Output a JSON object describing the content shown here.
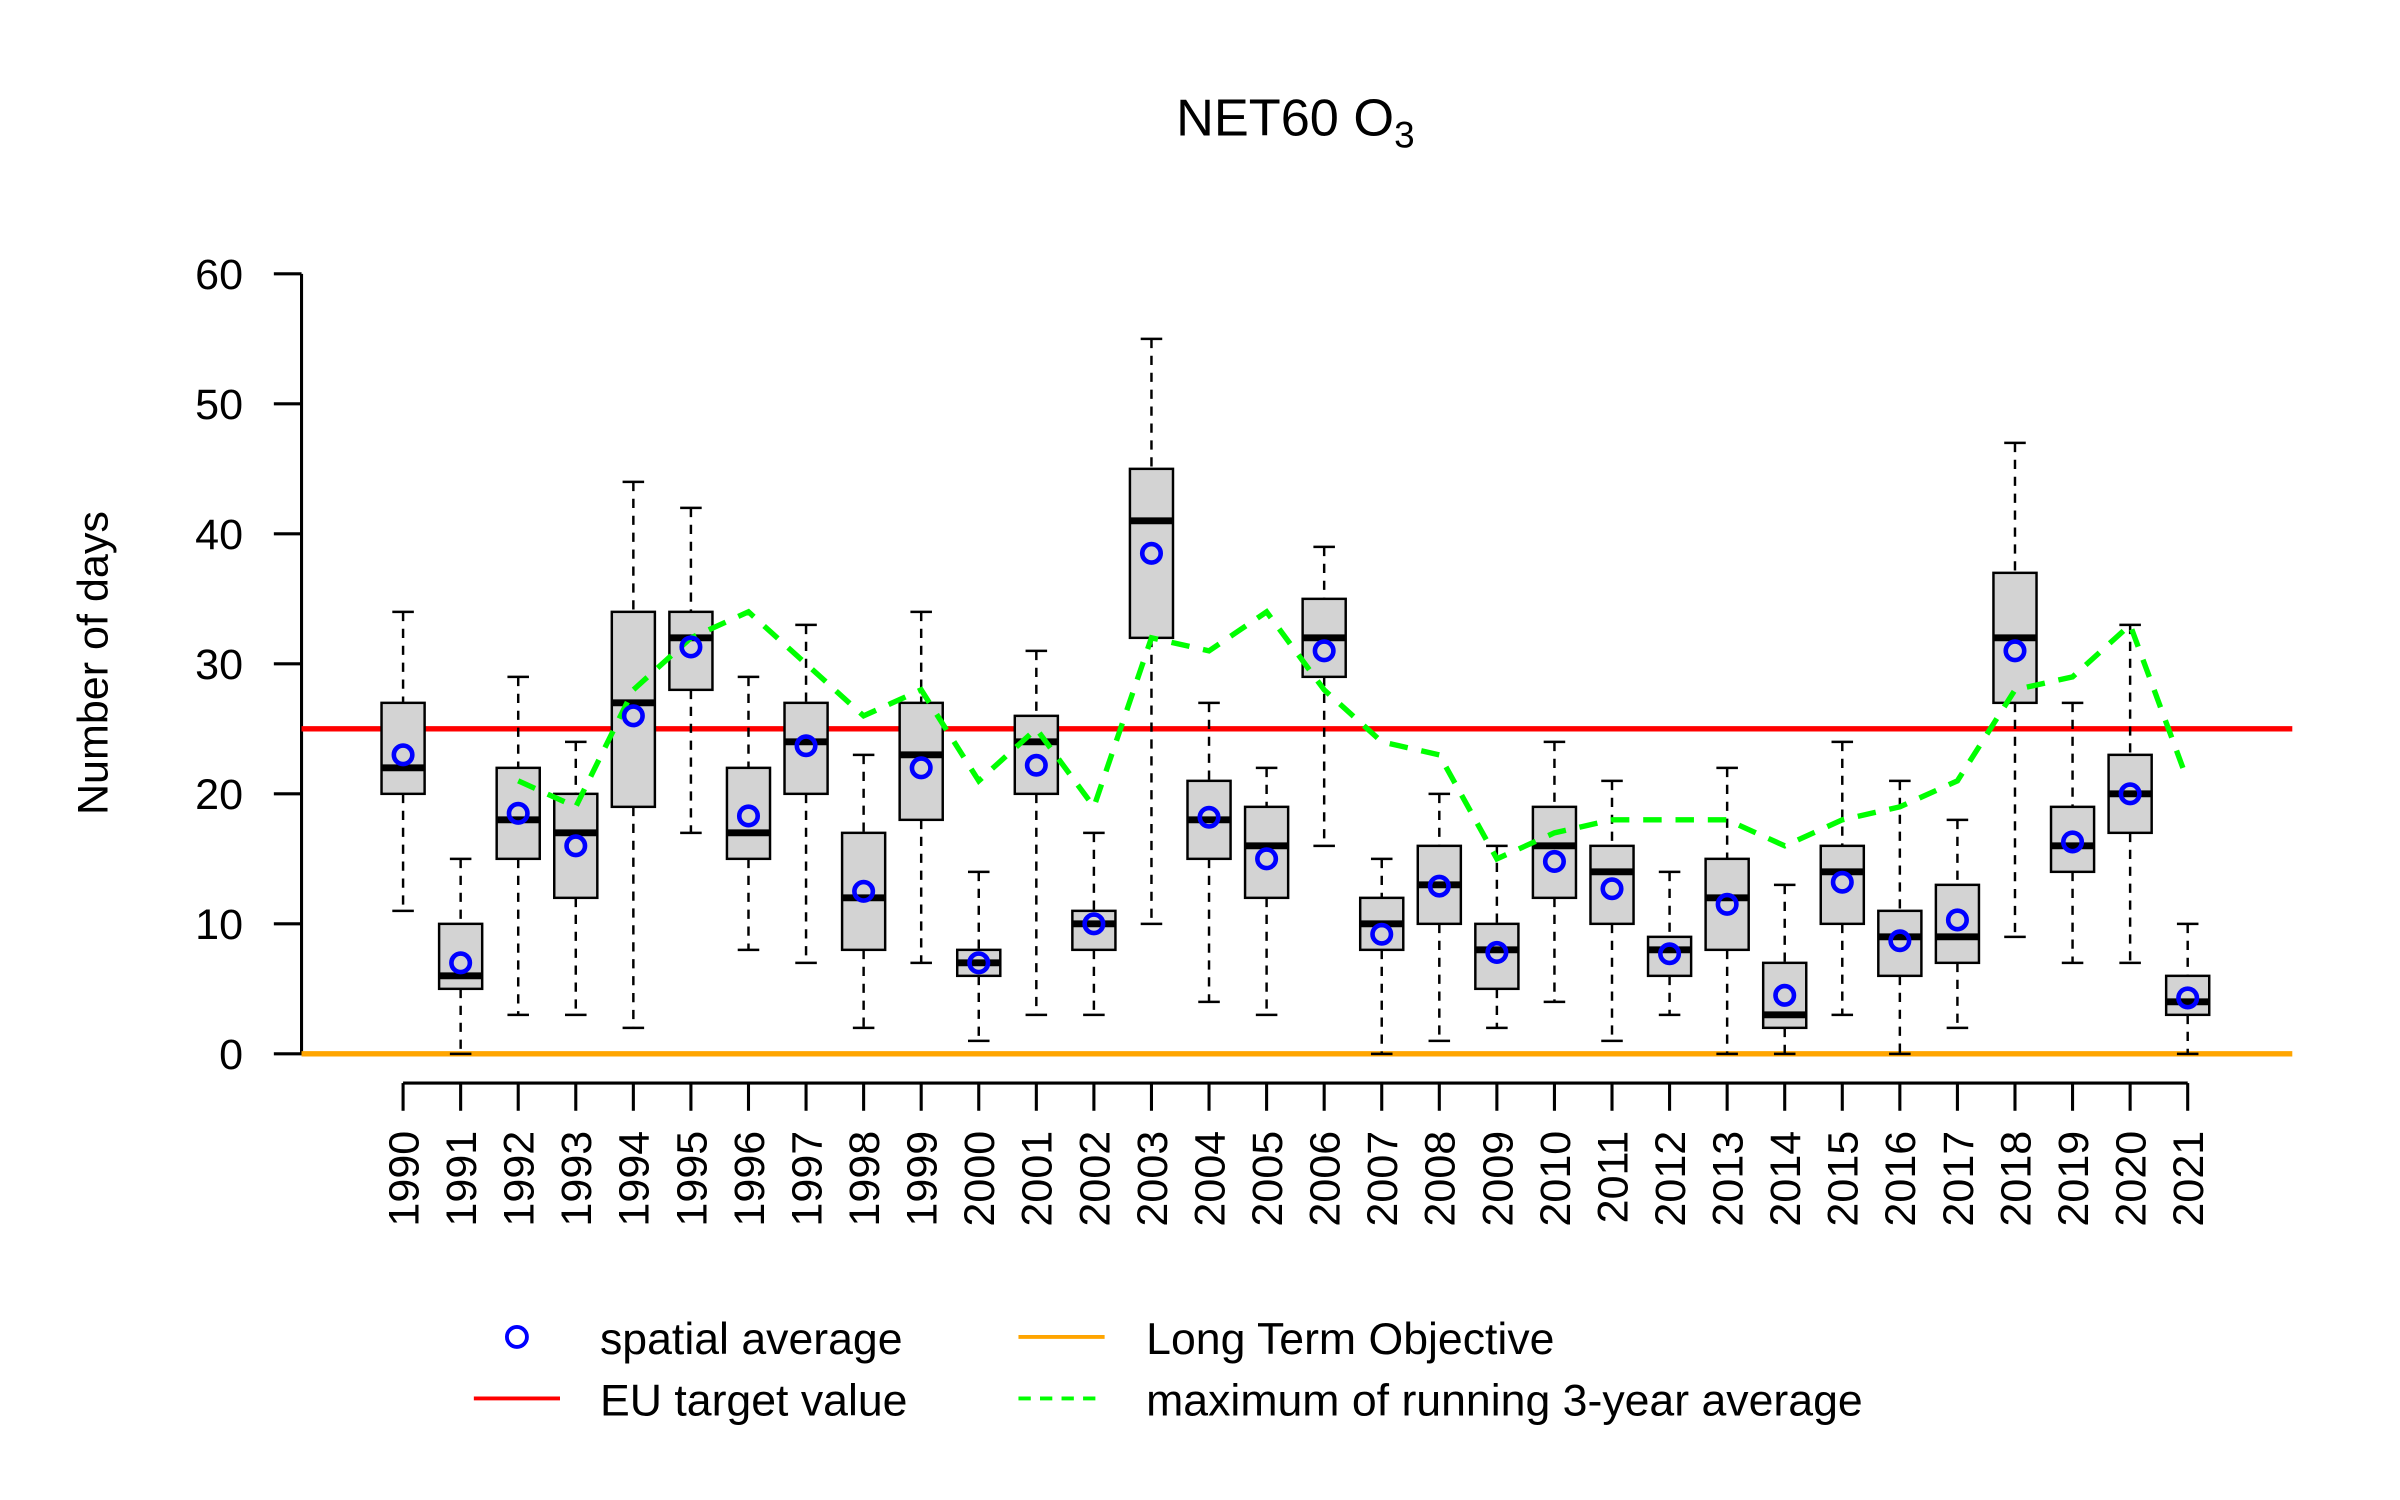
{
  "chart_data": {
    "type": "boxplot",
    "title": "NET60 O",
    "title_subscript": "3",
    "ylabel": "Number of days",
    "xlabel": "",
    "ylim": [
      0,
      60
    ],
    "yticks": [
      0,
      10,
      20,
      30,
      40,
      50,
      60
    ],
    "grid": false,
    "categories": [
      "1990",
      "1991",
      "1992",
      "1993",
      "1994",
      "1995",
      "1996",
      "1997",
      "1998",
      "1999",
      "2000",
      "2001",
      "2002",
      "2003",
      "2004",
      "2005",
      "2006",
      "2007",
      "2008",
      "2009",
      "2010",
      "2011",
      "2012",
      "2013",
      "2014",
      "2015",
      "2016",
      "2017",
      "2018",
      "2019",
      "2020",
      "2021"
    ],
    "boxes": [
      {
        "low": 11,
        "q1": 20,
        "median": 22,
        "q3": 27,
        "high": 34
      },
      {
        "low": 0,
        "q1": 5,
        "median": 6,
        "q3": 10,
        "high": 15
      },
      {
        "low": 3,
        "q1": 15,
        "median": 18,
        "q3": 22,
        "high": 29
      },
      {
        "low": 3,
        "q1": 12,
        "median": 17,
        "q3": 20,
        "high": 24
      },
      {
        "low": 2,
        "q1": 19,
        "median": 27,
        "q3": 34,
        "high": 44
      },
      {
        "low": 17,
        "q1": 28,
        "median": 32,
        "q3": 34,
        "high": 42
      },
      {
        "low": 8,
        "q1": 15,
        "median": 17,
        "q3": 22,
        "high": 29
      },
      {
        "low": 7,
        "q1": 20,
        "median": 24,
        "q3": 27,
        "high": 33
      },
      {
        "low": 2,
        "q1": 8,
        "median": 12,
        "q3": 17,
        "high": 23
      },
      {
        "low": 7,
        "q1": 18,
        "median": 23,
        "q3": 27,
        "high": 34
      },
      {
        "low": 1,
        "q1": 6,
        "median": 7,
        "q3": 8,
        "high": 14
      },
      {
        "low": 3,
        "q1": 20,
        "median": 24,
        "q3": 26,
        "high": 31
      },
      {
        "low": 3,
        "q1": 8,
        "median": 10,
        "q3": 11,
        "high": 17
      },
      {
        "low": 10,
        "q1": 32,
        "median": 41,
        "q3": 45,
        "high": 55
      },
      {
        "low": 4,
        "q1": 15,
        "median": 18,
        "q3": 21,
        "high": 27
      },
      {
        "low": 3,
        "q1": 12,
        "median": 16,
        "q3": 19,
        "high": 22
      },
      {
        "low": 16,
        "q1": 29,
        "median": 32,
        "q3": 35,
        "high": 39
      },
      {
        "low": 0,
        "q1": 8,
        "median": 10,
        "q3": 12,
        "high": 15
      },
      {
        "low": 1,
        "q1": 10,
        "median": 13,
        "q3": 16,
        "high": 20
      },
      {
        "low": 2,
        "q1": 5,
        "median": 8,
        "q3": 10,
        "high": 16
      },
      {
        "low": 4,
        "q1": 12,
        "median": 16,
        "q3": 19,
        "high": 24
      },
      {
        "low": 1,
        "q1": 10,
        "median": 14,
        "q3": 16,
        "high": 21
      },
      {
        "low": 3,
        "q1": 6,
        "median": 8,
        "q3": 9,
        "high": 14
      },
      {
        "low": 0,
        "q1": 8,
        "median": 12,
        "q3": 15,
        "high": 22
      },
      {
        "low": 0,
        "q1": 2,
        "median": 3,
        "q3": 7,
        "high": 13
      },
      {
        "low": 3,
        "q1": 10,
        "median": 14,
        "q3": 16,
        "high": 24
      },
      {
        "low": 0,
        "q1": 6,
        "median": 9,
        "q3": 11,
        "high": 21
      },
      {
        "low": 2,
        "q1": 7,
        "median": 9,
        "q3": 13,
        "high": 18
      },
      {
        "low": 9,
        "q1": 27,
        "median": 32,
        "q3": 37,
        "high": 47
      },
      {
        "low": 7,
        "q1": 14,
        "median": 16,
        "q3": 19,
        "high": 27
      },
      {
        "low": 7,
        "q1": 17,
        "median": 20,
        "q3": 23,
        "high": 33
      },
      {
        "low": 0,
        "q1": 3,
        "median": 4,
        "q3": 6,
        "high": 10
      }
    ],
    "series": [
      {
        "name": "spatial average",
        "kind": "points",
        "color": "#0000ff",
        "values": [
          23,
          7,
          18.5,
          16,
          26,
          31.3,
          18.3,
          23.7,
          12.5,
          22,
          7,
          22.2,
          10,
          38.5,
          18.2,
          15,
          31,
          9.2,
          12.9,
          7.8,
          14.8,
          12.7,
          7.7,
          11.5,
          4.5,
          13.2,
          8.7,
          10.3,
          31,
          16.3,
          20,
          4.3
        ]
      },
      {
        "name": "maximum of running 3-year average",
        "kind": "dashed-line",
        "color": "#00ff00",
        "values": [
          null,
          null,
          21,
          19,
          28,
          32,
          34,
          30,
          26,
          28,
          21,
          25,
          19,
          32,
          31,
          34,
          28,
          24,
          23,
          15,
          17,
          18,
          18,
          18,
          16,
          18,
          19,
          21,
          28,
          29,
          33,
          21
        ]
      },
      {
        "name": "EU target value",
        "kind": "hline",
        "color": "#ff0000",
        "value": 25
      },
      {
        "name": "Long Term Objective",
        "kind": "hline",
        "color": "#ffa500",
        "value": 0
      }
    ],
    "box_fill": "#d3d3d3",
    "legend_placement": "bottom"
  },
  "legend": {
    "spatial_average": "spatial average",
    "eu_target": "EU target value",
    "lto": "Long Term Objective",
    "running": "maximum of running 3-year average"
  }
}
